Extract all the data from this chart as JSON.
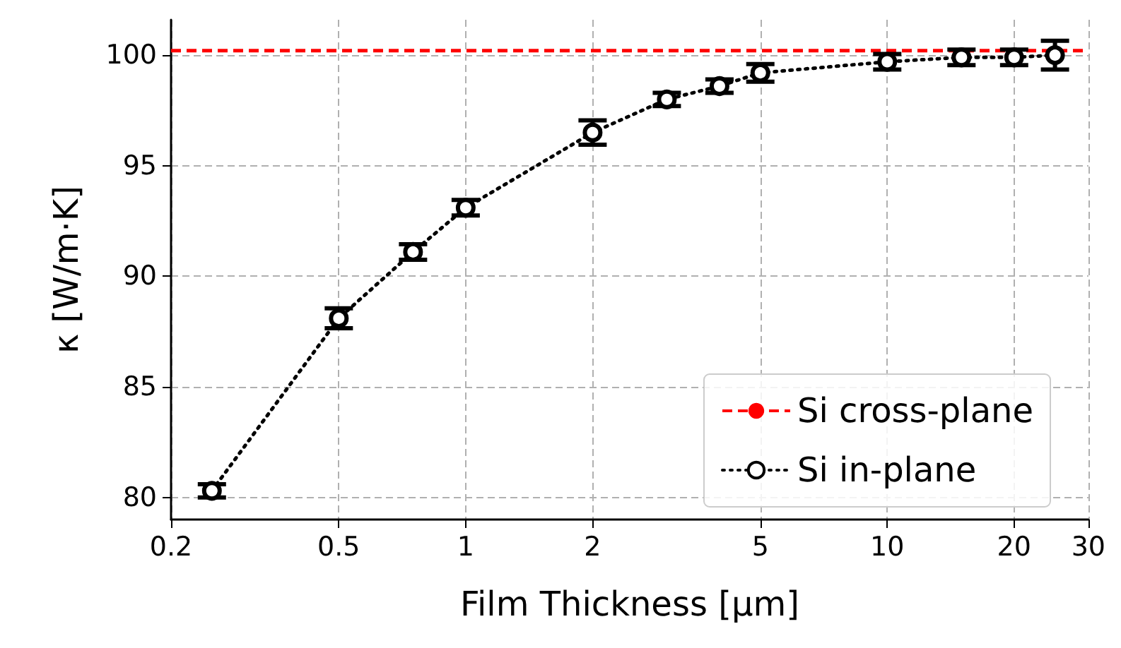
{
  "chart_data": {
    "type": "line",
    "xlabel": "Film Thickness [μm]",
    "ylabel": "κ [W/m·K]",
    "log": "x",
    "xlim": [
      0.2,
      30
    ],
    "xticks": [
      0.2,
      0.5,
      1,
      2,
      5,
      10,
      20,
      30
    ],
    "ylim": [
      79,
      101.6
    ],
    "yticks": [
      80,
      85,
      90,
      95,
      100
    ],
    "series": [
      {
        "name": "Si in-plane",
        "color": "#000000",
        "x": [
          0.25,
          0.5,
          0.75,
          1,
          2,
          3,
          4,
          5,
          10,
          15,
          20,
          25
        ],
        "values": [
          80.3,
          88.1,
          91.1,
          93.1,
          96.5,
          98.0,
          98.6,
          99.2,
          99.7,
          99.9,
          99.9,
          100.0
        ],
        "errors": [
          0.3,
          0.45,
          0.35,
          0.35,
          0.55,
          0.3,
          0.3,
          0.4,
          0.35,
          0.35,
          0.35,
          0.65
        ],
        "marker": "circle",
        "line_style": "dotted"
      }
    ],
    "ref_lines": [
      {
        "axis": "y",
        "value": 100.2,
        "label": "Si cross-plane",
        "color": "#ff0000",
        "line_style": "dashed"
      }
    ],
    "grid": true,
    "legend": "bottom right"
  }
}
